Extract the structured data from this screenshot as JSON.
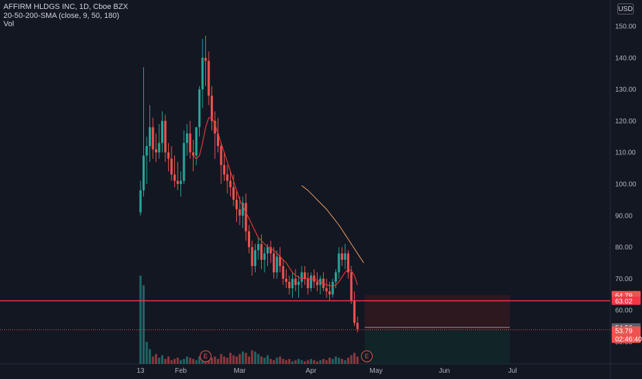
{
  "header": {
    "title": "AFFIRM HLDGS INC, 1D, Cboe BZX",
    "indicator": "20-50-200-SMA (close, 9, 50, 180)",
    "volume_label": "Vol",
    "currency": "USD"
  },
  "colors": {
    "background": "#131722",
    "up": "#26a69a",
    "down": "#ef5350",
    "sma_fast": "#e53935",
    "sma_slow": "#f4a261",
    "hline": "#f23645"
  },
  "chart_data": {
    "type": "candlestick",
    "y_ticks": [
      "150.00",
      "140.00",
      "130.00",
      "120.00",
      "110.00",
      "100.00",
      "90.00",
      "80.00",
      "70.00",
      "60.00",
      "50.00"
    ],
    "ylim": [
      47,
      153
    ],
    "x_ticks": [
      {
        "label": "13",
        "i": 0
      },
      {
        "label": "Feb",
        "i": 13
      },
      {
        "label": "Mar",
        "i": 32
      },
      {
        "label": "Apr",
        "i": 55
      },
      {
        "label": "May",
        "i": 76
      },
      {
        "label": "Jun",
        "i": 98
      },
      {
        "label": "Jul",
        "i": 120
      }
    ],
    "candles": [
      [
        91,
        101,
        90,
        98
      ],
      [
        98,
        137,
        96,
        109
      ],
      [
        109,
        115,
        100,
        112
      ],
      [
        112,
        125,
        107,
        118
      ],
      [
        118,
        121,
        108,
        111
      ],
      [
        111,
        116,
        107,
        110
      ],
      [
        110,
        119,
        108,
        113
      ],
      [
        113,
        123,
        110,
        120
      ],
      [
        120,
        122,
        107,
        110
      ],
      [
        110,
        113,
        104,
        108
      ],
      [
        108,
        112,
        101,
        103
      ],
      [
        103,
        109,
        99,
        101
      ],
      [
        101,
        107,
        98,
        100
      ],
      [
        100,
        104,
        96,
        101
      ],
      [
        101,
        117,
        100,
        113
      ],
      [
        113,
        119,
        109,
        116
      ],
      [
        116,
        120,
        108,
        110
      ],
      [
        110,
        114,
        104,
        109
      ],
      [
        109,
        118,
        106,
        118
      ],
      [
        118,
        131,
        115,
        130
      ],
      [
        130,
        146,
        124,
        140
      ],
      [
        140,
        147,
        131,
        139
      ],
      [
        139,
        142,
        125,
        128
      ],
      [
        128,
        131,
        117,
        120
      ],
      [
        120,
        123,
        108,
        116
      ],
      [
        116,
        121,
        110,
        112
      ],
      [
        112,
        113,
        100,
        106
      ],
      [
        106,
        110,
        101,
        103
      ],
      [
        103,
        106,
        97,
        101
      ],
      [
        101,
        104,
        96,
        99
      ],
      [
        99,
        103,
        93,
        95
      ],
      [
        95,
        98,
        88,
        92
      ],
      [
        92,
        96,
        87,
        90
      ],
      [
        90,
        96,
        86,
        94
      ],
      [
        94,
        97,
        82,
        85
      ],
      [
        85,
        87,
        78,
        80
      ],
      [
        80,
        82,
        71,
        74
      ],
      [
        74,
        81,
        72,
        79
      ],
      [
        79,
        83,
        76,
        81
      ],
      [
        81,
        84,
        73,
        76
      ],
      [
        76,
        80,
        72,
        78
      ],
      [
        78,
        81,
        74,
        80
      ],
      [
        80,
        82,
        75,
        78
      ],
      [
        78,
        80,
        70,
        72
      ],
      [
        72,
        79,
        70,
        77
      ],
      [
        77,
        80,
        72,
        74
      ],
      [
        74,
        76,
        68,
        70
      ],
      [
        70,
        73,
        67,
        69
      ],
      [
        69,
        71,
        65,
        67
      ],
      [
        67,
        72,
        64,
        70
      ],
      [
        70,
        73,
        66,
        68
      ],
      [
        68,
        71,
        64,
        69
      ],
      [
        69,
        74,
        67,
        72
      ],
      [
        72,
        74,
        68,
        70
      ],
      [
        70,
        72,
        65,
        67
      ],
      [
        67,
        72,
        66,
        71
      ],
      [
        71,
        73,
        67,
        69
      ],
      [
        69,
        72,
        66,
        68
      ],
      [
        68,
        71,
        65,
        70
      ],
      [
        70,
        72,
        66,
        67
      ],
      [
        67,
        70,
        64,
        66
      ],
      [
        66,
        69,
        63,
        65
      ],
      [
        65,
        70,
        64,
        69
      ],
      [
        69,
        73,
        67,
        72
      ],
      [
        72,
        80,
        70,
        78
      ],
      [
        78,
        80,
        74,
        76
      ],
      [
        76,
        81,
        73,
        78
      ],
      [
        78,
        79,
        70,
        72
      ],
      [
        72,
        74,
        62,
        63
      ],
      [
        63,
        66,
        55,
        56
      ],
      [
        56,
        58,
        53,
        54
      ]
    ],
    "volume": [
      72,
      64,
      18,
      12,
      6,
      8,
      5,
      7,
      4,
      6,
      3,
      4,
      5,
      3,
      4,
      6,
      5,
      4,
      3,
      6,
      8,
      10,
      7,
      5,
      6,
      4,
      8,
      6,
      5,
      9,
      7,
      6,
      8,
      10,
      9,
      6,
      11,
      10,
      8,
      6,
      5,
      7,
      4,
      3,
      5,
      6,
      4,
      3,
      4,
      2,
      3,
      4,
      3,
      2,
      3,
      4,
      3,
      2,
      3,
      4,
      3,
      5,
      4,
      6,
      5,
      4,
      3,
      5,
      7,
      9,
      6
    ],
    "sma_fast": [
      [
        17,
        109
      ],
      [
        18,
        108
      ],
      [
        19,
        109
      ],
      [
        20,
        113
      ],
      [
        21,
        118
      ],
      [
        22,
        121
      ],
      [
        23,
        121
      ],
      [
        24,
        119
      ],
      [
        25,
        116
      ],
      [
        26,
        113
      ],
      [
        27,
        110
      ],
      [
        28,
        107
      ],
      [
        29,
        104
      ],
      [
        30,
        101
      ],
      [
        31,
        98
      ],
      [
        32,
        95
      ],
      [
        33,
        93
      ],
      [
        34,
        91
      ],
      [
        35,
        89
      ],
      [
        36,
        87
      ],
      [
        37,
        85
      ],
      [
        38,
        83
      ],
      [
        39,
        82
      ],
      [
        40,
        81
      ],
      [
        41,
        80
      ],
      [
        42,
        79.5
      ],
      [
        43,
        79
      ],
      [
        44,
        78
      ],
      [
        45,
        77
      ],
      [
        46,
        76
      ],
      [
        47,
        75
      ],
      [
        48,
        73.5
      ],
      [
        49,
        72
      ],
      [
        50,
        71
      ],
      [
        51,
        70.5
      ],
      [
        52,
        70
      ],
      [
        53,
        70
      ],
      [
        54,
        70
      ],
      [
        55,
        70
      ],
      [
        56,
        69.8
      ],
      [
        57,
        69.5
      ],
      [
        58,
        69
      ],
      [
        59,
        68.5
      ],
      [
        60,
        68
      ],
      [
        61,
        67.8
      ],
      [
        62,
        67.6
      ],
      [
        63,
        68
      ],
      [
        64,
        69
      ],
      [
        65,
        70.5
      ],
      [
        66,
        72
      ],
      [
        67,
        73
      ],
      [
        68,
        72.5
      ],
      [
        69,
        71
      ],
      [
        70,
        68
      ]
    ],
    "sma_slow": [
      [
        52,
        99.5
      ],
      [
        54,
        98
      ],
      [
        56,
        96
      ],
      [
        58,
        94
      ],
      [
        60,
        92
      ],
      [
        62,
        89.5
      ],
      [
        64,
        87
      ],
      [
        66,
        84
      ],
      [
        68,
        81
      ],
      [
        70,
        78
      ],
      [
        72,
        75
      ]
    ],
    "hline_value": 63,
    "current_price": 53.79,
    "current_price_label": "53.79",
    "countdown": "02:46:40",
    "gray_price_label": "54.56",
    "risk_box_top_label": "64.79",
    "hline_label": "63.02",
    "earnings_marker": "E",
    "earnings_positions": [
      21,
      73
    ]
  }
}
